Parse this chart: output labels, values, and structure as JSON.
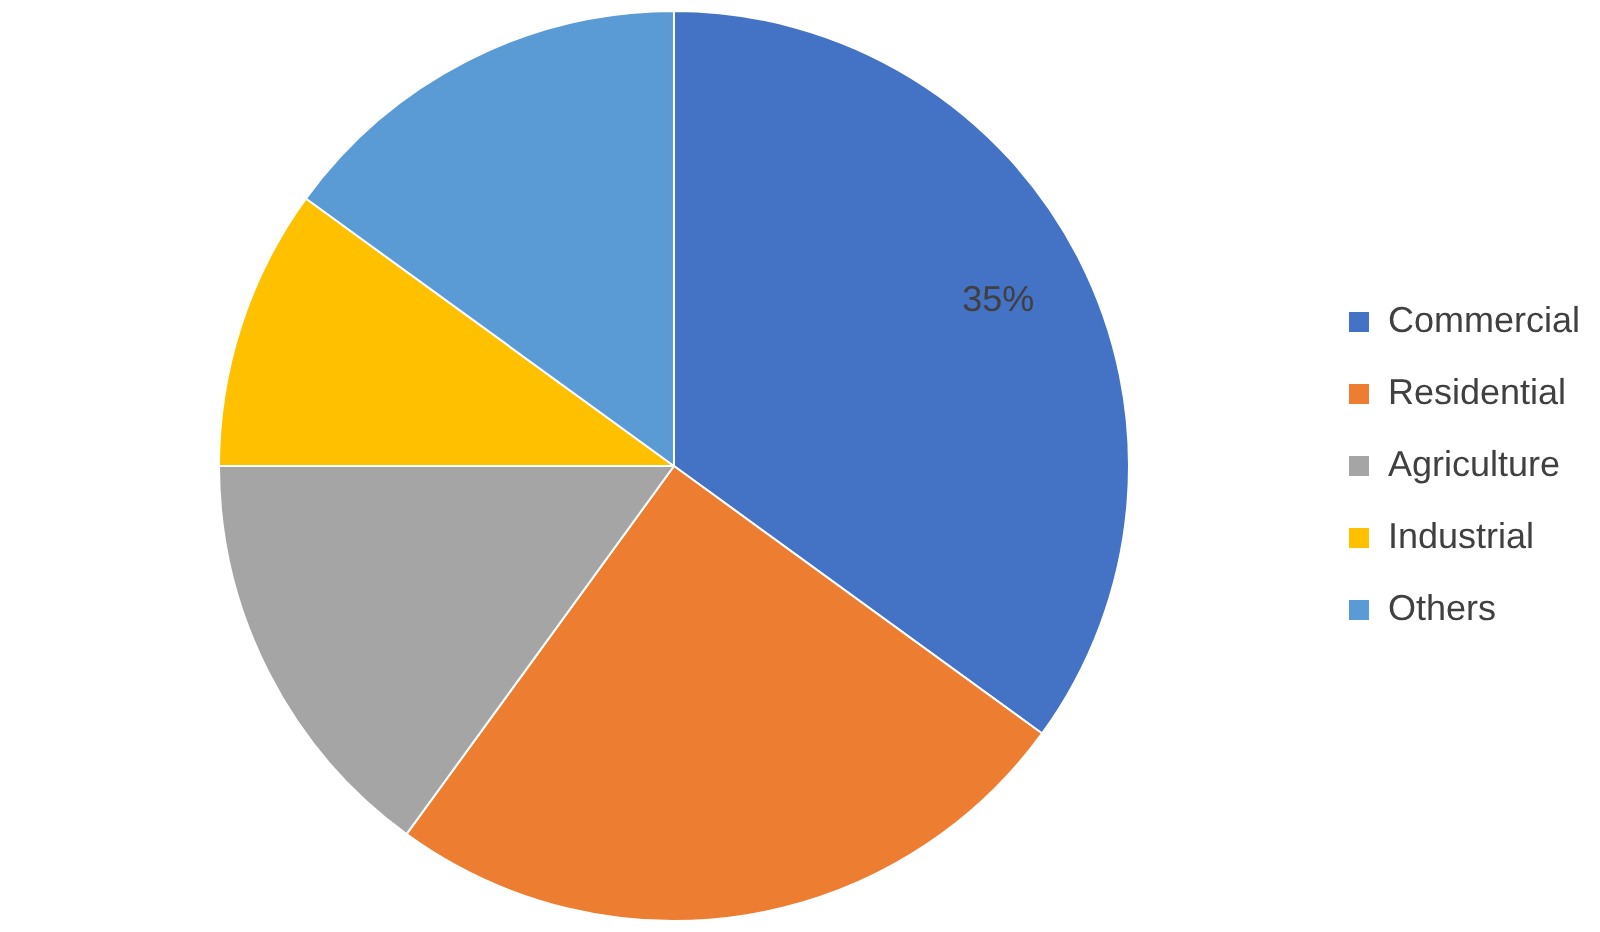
{
  "chart_data": {
    "type": "pie",
    "categories": [
      "Commercial",
      "Residential",
      "Agriculture",
      "Industrial",
      "Others"
    ],
    "values": [
      35,
      25,
      15,
      10,
      15
    ],
    "colors": [
      "#4472c4",
      "#ed7d31",
      "#a5a5a5",
      "#ffc000",
      "#5b9bd5"
    ],
    "value_labels": [
      "35%",
      null,
      null,
      null,
      null
    ],
    "legend": "right"
  }
}
